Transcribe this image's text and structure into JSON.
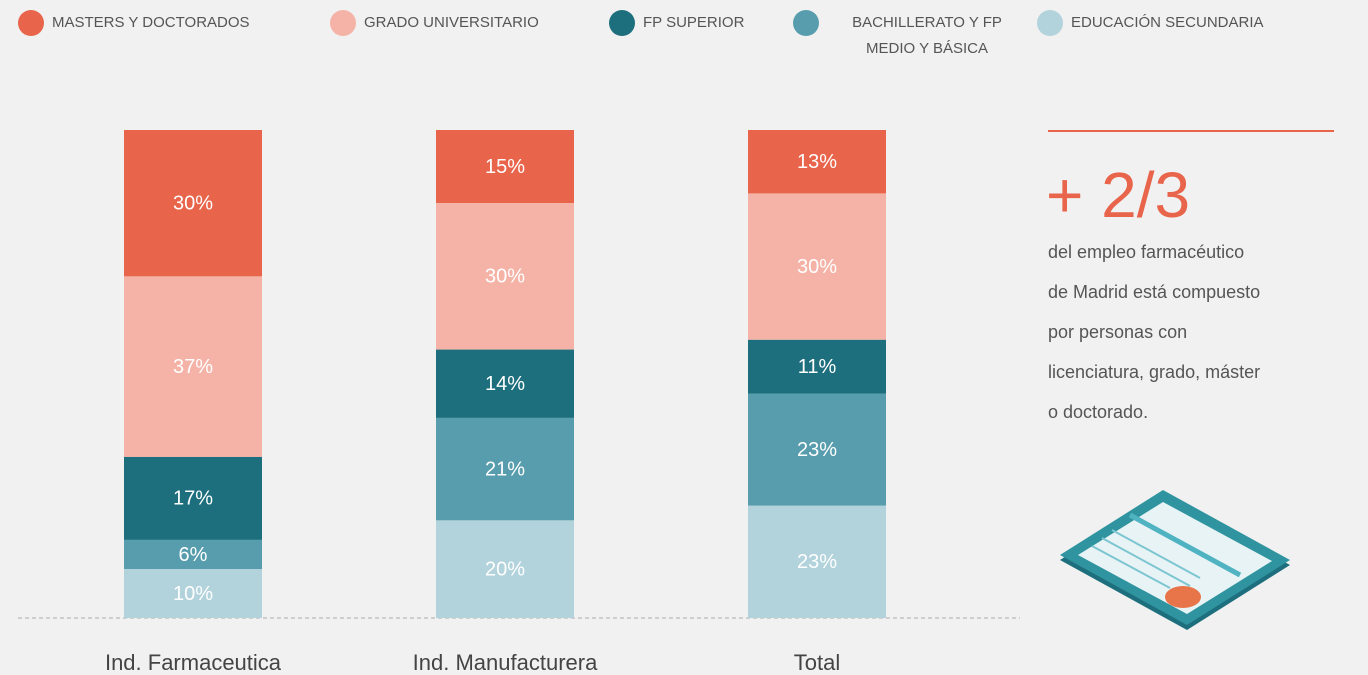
{
  "chart_data": {
    "type": "bar",
    "stacked": true,
    "categories": [
      "Ind. Farmaceutica",
      "Ind. Manufacturera",
      "Total"
    ],
    "series": [
      {
        "name": "MASTERS Y DOCTORADOS",
        "color": "#e8644a",
        "values": [
          30,
          15,
          13
        ],
        "value_labels": [
          "30%",
          "15%",
          "13%"
        ]
      },
      {
        "name": "GRADO UNIVERSITARIO",
        "color": "#f5b3a7",
        "values": [
          37,
          30,
          30
        ],
        "value_labels": [
          "37%",
          "30%",
          "30%"
        ]
      },
      {
        "name": "FP SUPERIOR",
        "color": "#1e6f7d",
        "values": [
          17,
          14,
          11
        ],
        "value_labels": [
          "17%",
          "14%",
          "11%"
        ]
      },
      {
        "name": "BACHILLERATO Y FP MEDIO Y BÁSICA",
        "color": "#579dad",
        "values": [
          6,
          21,
          23
        ],
        "value_labels": [
          "6%",
          "21%",
          "23%"
        ]
      },
      {
        "name": "EDUCACIÓN SECUNDARIA",
        "color": "#b3d3dc",
        "values": [
          10,
          20,
          23
        ],
        "value_labels": [
          "10%",
          "20%",
          "23%"
        ]
      }
    ]
  },
  "panel": {
    "headline": "+ 2/3",
    "text": [
      "del empleo farmacéutico",
      "de Madrid está compuesto",
      "por personas con",
      "licenciatura, grado, máster",
      "o doctorado."
    ]
  }
}
